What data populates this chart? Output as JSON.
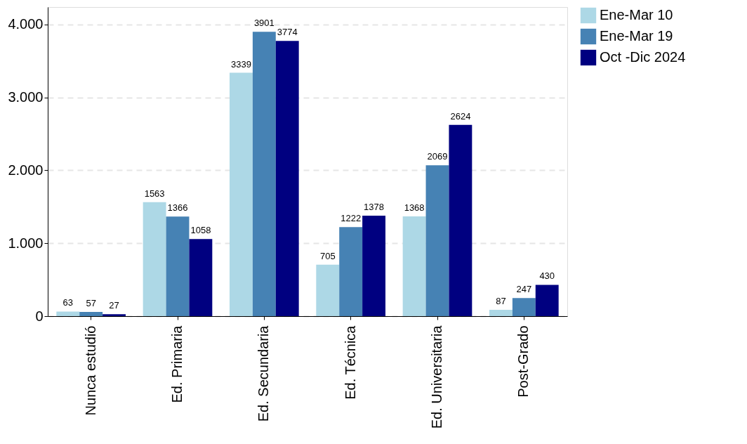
{
  "chart_data": {
    "type": "bar",
    "categories": [
      "Nunca estudió",
      "Ed. Primaria",
      "Ed. Secundaria",
      "Ed. Técnica",
      "Ed. Universitaria",
      "Post-Grado"
    ],
    "series": [
      {
        "name": "Ene-Mar 10",
        "color": "#add8e6",
        "values": [
          63,
          1563,
          3339,
          705,
          1368,
          87
        ]
      },
      {
        "name": "Ene-Mar 19",
        "color": "#4682b4",
        "values": [
          57,
          1366,
          3901,
          1222,
          2069,
          247
        ]
      },
      {
        "name": "Oct -Dic 2024",
        "color": "#000080",
        "values": [
          27,
          1058,
          3774,
          1378,
          2624,
          430
        ]
      }
    ],
    "ylim": [
      0,
      4240
    ],
    "yticks": [
      0,
      {
        "value": 1000,
        "label": "1.000"
      },
      {
        "value": 2000,
        "label": "2.000"
      },
      {
        "value": 3000,
        "label": "3.000"
      },
      {
        "value": 4000,
        "label": "4.000"
      }
    ],
    "grid": "y",
    "legend": "right",
    "data_labels": true
  }
}
